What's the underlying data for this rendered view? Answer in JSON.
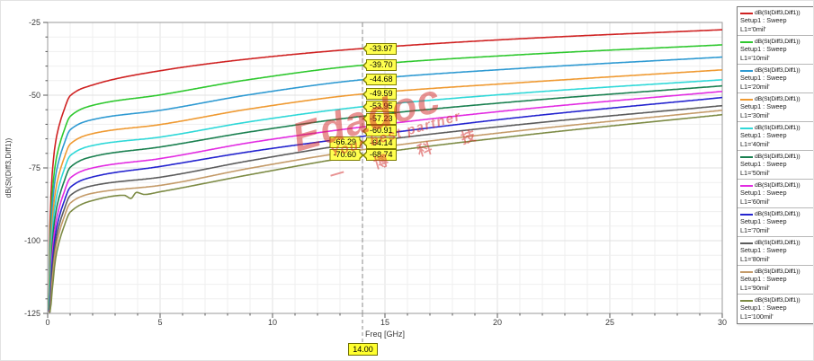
{
  "watermark": {
    "line1": "Edadoc",
    "line2": "Your best partner",
    "line3": "一 博 科 技",
    "color": "#d32a2a"
  },
  "legend": {
    "trace_label": "dB(St(Diff3,Diff1))",
    "setup_label": "Setup1 : Sweep"
  },
  "chart_data": {
    "type": "line",
    "xlabel": "Freq [GHz]",
    "ylabel": "dB(St(Diff3,Diff1))",
    "xlim": [
      0,
      30
    ],
    "ylim": [
      -125,
      -25
    ],
    "grid": true,
    "legend_position": "right",
    "x_minor_step": 1,
    "y_minor_step": 5,
    "x_ticks": [
      {
        "v": 0,
        "label": "0"
      },
      {
        "v": 5,
        "label": "5"
      },
      {
        "v": 10,
        "label": "10"
      },
      {
        "v": 15,
        "label": "15"
      },
      {
        "v": 20,
        "label": "20"
      },
      {
        "v": 25,
        "label": "25"
      },
      {
        "v": 30,
        "label": "30"
      }
    ],
    "y_ticks": [
      {
        "v": -25,
        "label": "-25"
      },
      {
        "v": -50,
        "label": "-50"
      },
      {
        "v": -75,
        "label": "-75"
      },
      {
        "v": -100,
        "label": "-100"
      },
      {
        "v": -125,
        "label": "-125"
      }
    ],
    "marker_freq": 14,
    "marker_freq_label": "14.00",
    "series": [
      {
        "name": "L1='0mil'",
        "color": "#cf2222",
        "marker": {
          "label": "-33.97",
          "value": -33.97,
          "side": "right"
        },
        "points": [
          [
            0.05,
            -124.5
          ],
          [
            0.1,
            -95.2
          ],
          [
            0.2,
            -77.2
          ],
          [
            0.35,
            -66.2
          ],
          [
            0.5,
            -60.7
          ],
          [
            0.7,
            -55.7
          ],
          [
            1,
            -50.2
          ],
          [
            2,
            -46.5
          ],
          [
            5,
            -41.6
          ],
          [
            9,
            -37.5
          ],
          [
            14,
            -33.97
          ],
          [
            21,
            -30.6
          ],
          [
            30,
            -27.5
          ]
        ]
      },
      {
        "name": "L1='10mil'",
        "color": "#2fc82f",
        "marker": {
          "label": "-39.70",
          "value": -39.7,
          "side": "right"
        },
        "points": [
          [
            0.05,
            -124.5
          ],
          [
            0.1,
            -102.3
          ],
          [
            0.2,
            -84.3
          ],
          [
            0.35,
            -73.3
          ],
          [
            0.5,
            -67.8
          ],
          [
            0.7,
            -62.8
          ],
          [
            1,
            -57.3
          ],
          [
            2,
            -53.5
          ],
          [
            5,
            -49.9
          ],
          [
            9,
            -44.6
          ],
          [
            14,
            -39.7
          ],
          [
            21,
            -36.1
          ],
          [
            30,
            -32.7
          ]
        ]
      },
      {
        "name": "L1='20mil'",
        "color": "#2f9ad2",
        "marker": {
          "label": "-44.68",
          "value": -44.68,
          "side": "right"
        },
        "points": [
          [
            0.05,
            -124.5
          ],
          [
            0.1,
            -106.9
          ],
          [
            0.2,
            -88.9
          ],
          [
            0.35,
            -77.9
          ],
          [
            0.5,
            -72.4
          ],
          [
            0.7,
            -67.4
          ],
          [
            1,
            -61.9
          ],
          [
            2,
            -58.4
          ],
          [
            5,
            -55.2
          ],
          [
            9,
            -49.8
          ],
          [
            14,
            -44.68
          ],
          [
            21,
            -40.8
          ],
          [
            30,
            -36.9
          ]
        ]
      },
      {
        "name": "L1='30mil'",
        "color": "#ef9a32",
        "marker": {
          "label": "-49.59",
          "value": -49.59,
          "side": "right"
        },
        "points": [
          [
            0.05,
            -124.5
          ],
          [
            0.1,
            -111.8
          ],
          [
            0.2,
            -93.8
          ],
          [
            0.35,
            -82.8
          ],
          [
            0.5,
            -77.3
          ],
          [
            0.7,
            -72.3
          ],
          [
            1,
            -66.8
          ],
          [
            2,
            -63.2
          ],
          [
            5,
            -60.1
          ],
          [
            9,
            -54.7
          ],
          [
            14,
            -49.59
          ],
          [
            21,
            -45.7
          ],
          [
            30,
            -41.3
          ]
        ]
      },
      {
        "name": "L1='40mil'",
        "color": "#2fd8d8",
        "marker": {
          "label": "-53.95",
          "value": -53.95,
          "side": "right"
        },
        "points": [
          [
            0.05,
            -124.5
          ],
          [
            0.1,
            -115.8
          ],
          [
            0.2,
            -97.8
          ],
          [
            0.35,
            -86.8
          ],
          [
            0.5,
            -81.3
          ],
          [
            0.7,
            -76.3
          ],
          [
            1,
            -70.8
          ],
          [
            2,
            -67.3
          ],
          [
            5,
            -64.4
          ],
          [
            9,
            -59.1
          ],
          [
            14,
            -53.95
          ],
          [
            21,
            -49.3
          ],
          [
            30,
            -44.7
          ]
        ]
      },
      {
        "name": "L1='50mil'",
        "color": "#1a8050",
        "marker": {
          "label": "-57.23",
          "value": -57.23,
          "side": "right"
        },
        "points": [
          [
            0.05,
            -124.5
          ],
          [
            0.1,
            -119.8
          ],
          [
            0.2,
            -101.8
          ],
          [
            0.35,
            -90.8
          ],
          [
            0.5,
            -85.3
          ],
          [
            0.7,
            -80.3
          ],
          [
            1,
            -74.8
          ],
          [
            2,
            -71.1
          ],
          [
            5,
            -67.8
          ],
          [
            9,
            -62.6
          ],
          [
            14,
            -57.23
          ],
          [
            21,
            -52.1
          ],
          [
            30,
            -46.8
          ]
        ]
      },
      {
        "name": "L1='60mil'",
        "color": "#e22ce2",
        "marker": {
          "label": "-60.91",
          "value": -60.91,
          "side": "right"
        },
        "points": [
          [
            0.05,
            -124.5
          ],
          [
            0.1,
            -123.5
          ],
          [
            0.2,
            -105.5
          ],
          [
            0.35,
            -94.5
          ],
          [
            0.5,
            -89.0
          ],
          [
            0.7,
            -84.0
          ],
          [
            1,
            -78.5
          ],
          [
            2,
            -75.0
          ],
          [
            5,
            -71.8
          ],
          [
            9,
            -66.3
          ],
          [
            14,
            -60.91
          ],
          [
            21,
            -54.9
          ],
          [
            30,
            -48.7
          ]
        ]
      },
      {
        "name": "L1='70mil'",
        "color": "#2424cf",
        "marker": {
          "label": "-64.14",
          "value": -64.14,
          "side": "right"
        },
        "points": [
          [
            0.05,
            -124.5
          ],
          [
            0.1,
            -124.5
          ],
          [
            0.2,
            -108.7
          ],
          [
            0.35,
            -97.7
          ],
          [
            0.5,
            -92.2
          ],
          [
            0.7,
            -87.2
          ],
          [
            1,
            -81.7
          ],
          [
            2,
            -78.1
          ],
          [
            5,
            -74.5
          ],
          [
            9,
            -69.4
          ],
          [
            14,
            -64.14
          ],
          [
            21,
            -57.6
          ],
          [
            30,
            -50.8
          ]
        ]
      },
      {
        "name": "L1='80mil'",
        "color": "#5c5c5c",
        "marker": {
          "label": "-66.29",
          "value": -66.29,
          "side": "left"
        },
        "points": [
          [
            0.05,
            -124.5
          ],
          [
            0.1,
            -124.5
          ],
          [
            0.2,
            -111.5
          ],
          [
            0.35,
            -100.5
          ],
          [
            0.5,
            -95.0
          ],
          [
            0.7,
            -90.0
          ],
          [
            1,
            -84.5
          ],
          [
            2,
            -81.1
          ],
          [
            5,
            -78.2
          ],
          [
            9,
            -72.5
          ],
          [
            14,
            -66.29
          ],
          [
            21,
            -60.1
          ],
          [
            30,
            -53.6
          ]
        ]
      },
      {
        "name": "L1='90mil'",
        "color": "#c49b69",
        "marker": {
          "label": "-68.74",
          "value": -68.74,
          "side": "right"
        },
        "points": [
          [
            0.05,
            -124.5
          ],
          [
            0.1,
            -124.5
          ],
          [
            0.2,
            -114.1
          ],
          [
            0.35,
            -103.1
          ],
          [
            0.5,
            -97.6
          ],
          [
            0.7,
            -92.6
          ],
          [
            1,
            -87.1
          ],
          [
            2,
            -83.7
          ],
          [
            5,
            -81.0
          ],
          [
            9,
            -75.1
          ],
          [
            14,
            -68.74
          ],
          [
            21,
            -62.2
          ],
          [
            30,
            -55.2
          ]
        ]
      },
      {
        "name": "L1='100mil'",
        "color": "#7d8b45",
        "marker": {
          "label": "-70.60",
          "value": -70.6,
          "side": "left"
        },
        "points": [
          [
            0.05,
            -124.5
          ],
          [
            0.1,
            -124.5
          ],
          [
            0.2,
            -117.2
          ],
          [
            0.35,
            -106.2
          ],
          [
            0.5,
            -100.7
          ],
          [
            0.7,
            -95.7
          ],
          [
            1,
            -90.2
          ],
          [
            2,
            -86.2
          ],
          [
            3.4,
            -84.4
          ],
          [
            3.7,
            -85.5
          ],
          [
            3.95,
            -83.4
          ],
          [
            4.3,
            -84.1
          ],
          [
            5,
            -83.2
          ],
          [
            9,
            -77.3
          ],
          [
            14,
            -70.6
          ],
          [
            21,
            -63.9
          ],
          [
            30,
            -56.7
          ]
        ]
      }
    ]
  }
}
